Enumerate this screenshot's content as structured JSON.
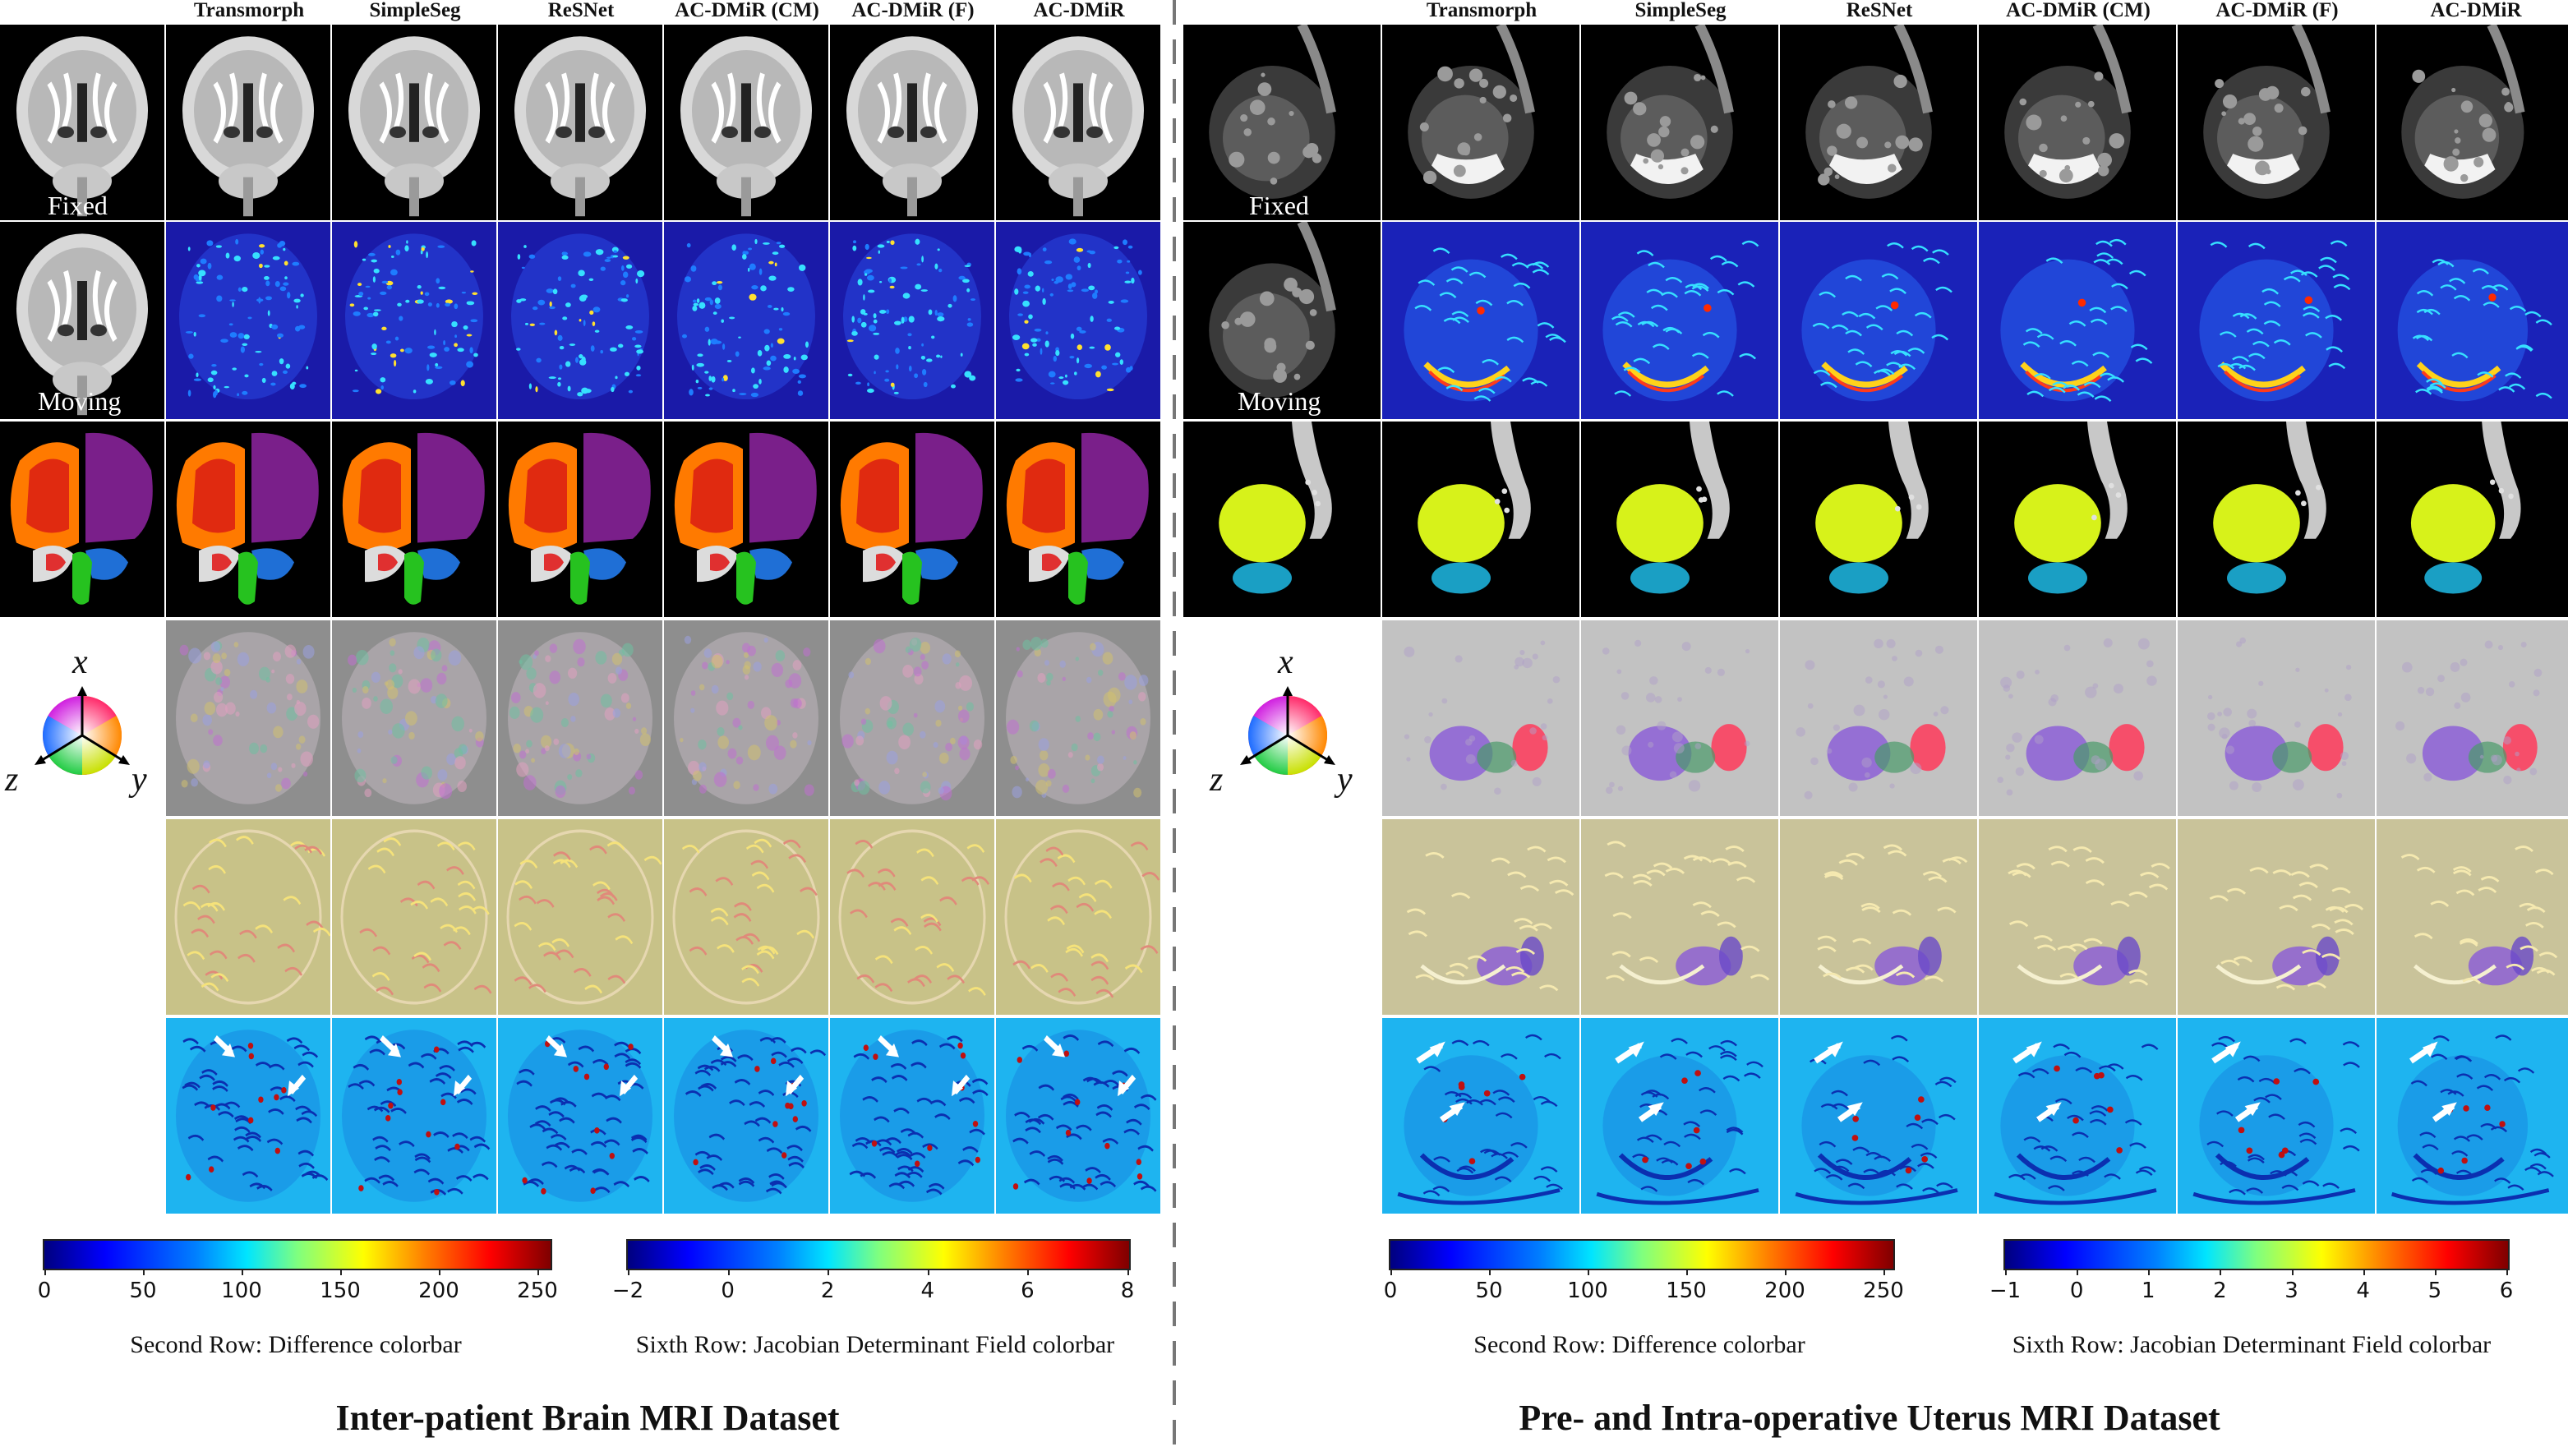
{
  "brain": {
    "columns": [
      "Transmorph",
      "SimpleSeg",
      "ReSNet",
      "AC-DMiR (CM)",
      "AC-DMiR (F)",
      "AC-DMiR"
    ],
    "fixed_label": "Fixed",
    "moving_label": "Moving",
    "colorbar_difference": {
      "ticks": [
        "0",
        "50",
        "100",
        "150",
        "200",
        "250"
      ],
      "caption": "Second Row: Difference colorbar"
    },
    "colorbar_jacobian": {
      "ticks": [
        "−2",
        "0",
        "2",
        "4",
        "6",
        "8"
      ],
      "caption": "Sixth Row: Jacobian Determinant Field colorbar"
    },
    "title": "Inter-patient Brain MRI Dataset"
  },
  "uterus": {
    "columns": [
      "Transmorph",
      "SimpleSeg",
      "ReSNet",
      "AC-DMiR (CM)",
      "AC-DMiR (F)",
      "AC-DMiR"
    ],
    "fixed_label": "Fixed",
    "moving_label": "Moving",
    "colorbar_difference": {
      "ticks": [
        "0",
        "50",
        "100",
        "150",
        "200",
        "250"
      ],
      "caption": "Second Row: Difference colorbar"
    },
    "colorbar_jacobian": {
      "ticks": [
        "−1",
        "0",
        "1",
        "2",
        "3",
        "4",
        "5",
        "6"
      ],
      "caption": "Sixth Row: Jacobian Determinant Field colorbar"
    },
    "title": "Pre- and Intra-operative Uterus MRI Dataset"
  },
  "axes_legend": {
    "x": "x",
    "y": "y",
    "z": "z"
  },
  "colors": {
    "difference_bg": "#1a1aa8",
    "jacobian_bg": "#1eb4f0",
    "deform_brain_bg": "#8e8e8e",
    "deform_uterus_bg": "#bcbcbc",
    "grid_brain_bg": "#c8c288",
    "grid_uterus_bg": "#c9c39a",
    "seg_orange": "#ff7a00",
    "seg_purple": "#7a1f8a",
    "seg_blue": "#1f6fd6",
    "seg_green": "#26c21f",
    "seg_yellow": "#d7f21a",
    "seg_cyan": "#1a9fc4"
  }
}
